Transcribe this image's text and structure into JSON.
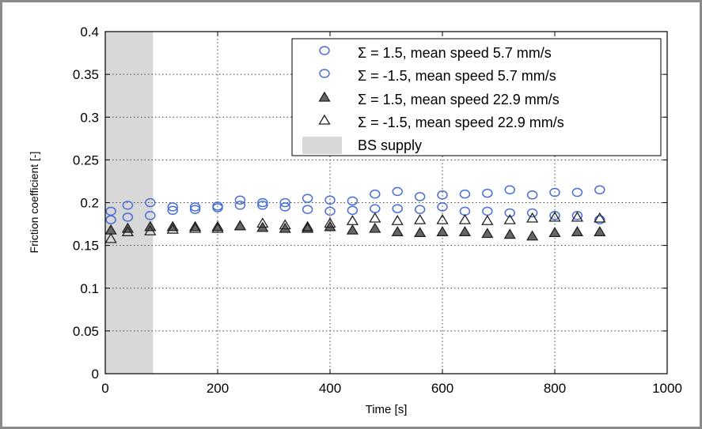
{
  "chart_data": {
    "type": "scatter",
    "xlabel": "Time [s]",
    "ylabel": "Friction coefficient [-]",
    "xlim": [
      0,
      1000
    ],
    "ylim": [
      0,
      0.4
    ],
    "xticks": [
      "0",
      "200",
      "400",
      "600",
      "800",
      "1000"
    ],
    "yticks": [
      "0",
      "0.05",
      "0.1",
      "0.15",
      "0.2",
      "0.25",
      "0.3",
      "0.35",
      "0.4"
    ],
    "grid": true,
    "legend_position": "top-right",
    "shaded_region": {
      "label": "BS supply",
      "x": [
        0,
        85
      ],
      "color": "#d8d8d8"
    },
    "series": [
      {
        "name": "Σ = 1.5, mean speed 5.7 mm/s",
        "marker": "circle",
        "color": "#4a6fd6",
        "fill": "none",
        "x": [
          10,
          40,
          80,
          120,
          160,
          200,
          240,
          280,
          320,
          360,
          400,
          440,
          480,
          520,
          560,
          600,
          640,
          680,
          720,
          760,
          800,
          840,
          880
        ],
        "y": [
          0.19,
          0.197,
          0.2,
          0.195,
          0.195,
          0.196,
          0.203,
          0.2,
          0.2,
          0.205,
          0.203,
          0.202,
          0.21,
          0.213,
          0.207,
          0.209,
          0.21,
          0.211,
          0.215,
          0.209,
          0.212,
          0.212,
          0.215
        ]
      },
      {
        "name": "Σ = -1.5, mean speed 5.7 mm/s",
        "marker": "circle",
        "color": "#4a6fd6",
        "fill": "none",
        "x": [
          10,
          40,
          80,
          120,
          160,
          200,
          240,
          280,
          320,
          360,
          400,
          440,
          480,
          520,
          560,
          600,
          640,
          680,
          720,
          760,
          800,
          840,
          880
        ],
        "y": [
          0.18,
          0.183,
          0.185,
          0.191,
          0.192,
          0.194,
          0.197,
          0.197,
          0.195,
          0.192,
          0.19,
          0.191,
          0.193,
          0.193,
          0.192,
          0.195,
          0.19,
          0.19,
          0.188,
          0.188,
          0.185,
          0.185,
          0.18
        ]
      },
      {
        "name": "Σ = 1.5, mean speed 22.9 mm/s",
        "marker": "triangle",
        "color": "#222222",
        "fill": "#666666",
        "x": [
          10,
          40,
          80,
          120,
          160,
          200,
          240,
          280,
          320,
          360,
          400,
          440,
          480,
          520,
          560,
          600,
          640,
          680,
          720,
          760,
          800,
          840,
          880
        ],
        "y": [
          0.168,
          0.17,
          0.172,
          0.172,
          0.172,
          0.172,
          0.173,
          0.171,
          0.17,
          0.17,
          0.172,
          0.168,
          0.17,
          0.166,
          0.165,
          0.166,
          0.166,
          0.164,
          0.163,
          0.161,
          0.165,
          0.166,
          0.166
        ]
      },
      {
        "name": "Σ = -1.5, mean speed 22.9 mm/s",
        "marker": "triangle",
        "color": "#222222",
        "fill": "none",
        "x": [
          10,
          40,
          80,
          120,
          160,
          200,
          240,
          280,
          320,
          360,
          400,
          440,
          480,
          520,
          560,
          600,
          640,
          680,
          720,
          760,
          800,
          840,
          880
        ],
        "y": [
          0.158,
          0.166,
          0.167,
          0.169,
          0.17,
          0.17,
          0.173,
          0.176,
          0.174,
          0.172,
          0.176,
          0.179,
          0.182,
          0.179,
          0.18,
          0.18,
          0.18,
          0.179,
          0.18,
          0.182,
          0.183,
          0.183,
          0.182
        ]
      }
    ]
  }
}
